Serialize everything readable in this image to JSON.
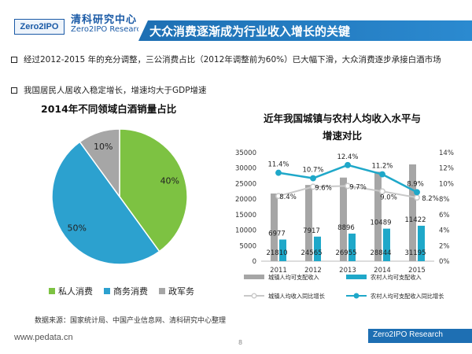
{
  "header": {
    "brand_cn": "清科研究中心",
    "brand_en": "Zero2IPO Research",
    "logo_text": "Zero2IPO",
    "title": "大众消费逐渐成为行业收入增长的关键"
  },
  "bullets": [
    "经过2012-2015 年的充分调整，三公消费占比（2012年调整前为60%）已大幅下滑，大众消费逐步承接白酒市场",
    "我国居民人居收入稳定增长，增速均大于GDP增速"
  ],
  "footer": {
    "source": "数据来源：国家统计局、中国产业信息网、清科研究中心整理",
    "website": "www.pedata.cn",
    "page_number": "8",
    "brand": "Zero2IPO Research"
  },
  "colors": {
    "brand_blue": "#1e6fb3",
    "pie_private": "#7dc242",
    "pie_business": "#2ca1cf",
    "pie_government": "#a6a6a6",
    "urban_bar": "#a6a6a6",
    "rural_bar": "#1fa8c9",
    "urban_line": "#c8c8c8",
    "rural_line": "#1fa8c9"
  },
  "chart_data": [
    {
      "type": "pie",
      "title": "2014年不同领域白酒销量占比",
      "slices": [
        {
          "name": "私人消费",
          "value": 40,
          "label": "40%"
        },
        {
          "name": "商务消费",
          "value": 50,
          "label": "50%"
        },
        {
          "name": "政军务",
          "value": 10,
          "label": "10%"
        }
      ],
      "legend_placement": "bottom"
    },
    {
      "type": "bar",
      "title_lines": [
        "近年我国城镇与农村人均收入水平与",
        "增速对比"
      ],
      "categories": [
        "2011",
        "2012",
        "2013",
        "2014",
        "2015"
      ],
      "ylim": [
        0,
        35000
      ],
      "yticks": [
        "0",
        "5000",
        "10000",
        "15000",
        "20000",
        "25000",
        "30000",
        "35000"
      ],
      "y2lim": [
        0,
        14
      ],
      "y2ticks": [
        "0%",
        "2%",
        "4%",
        "6%",
        "8%",
        "10%",
        "12%",
        "14%"
      ],
      "series": [
        {
          "name": "城镇人均可支配收入",
          "kind": "bar",
          "values": [
            21810,
            24565,
            26955,
            28844,
            31195
          ],
          "labels": [
            "21810",
            "24565",
            "26955",
            "28844",
            "31195"
          ]
        },
        {
          "name": "农村人均可支配收入",
          "kind": "bar",
          "values": [
            6977,
            7917,
            8896,
            10489,
            11422
          ],
          "labels": [
            "6977",
            "7917",
            "8896",
            "10489",
            "11422"
          ]
        },
        {
          "name": "城镇人均收入同比增长",
          "kind": "line",
          "axis": "right",
          "values": [
            8.4,
            9.6,
            9.7,
            9.0,
            8.2
          ],
          "labels": [
            "8.4%",
            "9.6%",
            "9.7%",
            "9.0%",
            "8.2%"
          ]
        },
        {
          "name": "农村人均可支配收入同比增长",
          "kind": "line",
          "axis": "right",
          "values": [
            11.4,
            10.7,
            12.4,
            11.2,
            8.9
          ],
          "labels": [
            "11.4%",
            "10.7%",
            "12.4%",
            "11.2%",
            "8.9%"
          ]
        }
      ],
      "grid": false,
      "legend_placement": "bottom"
    }
  ]
}
